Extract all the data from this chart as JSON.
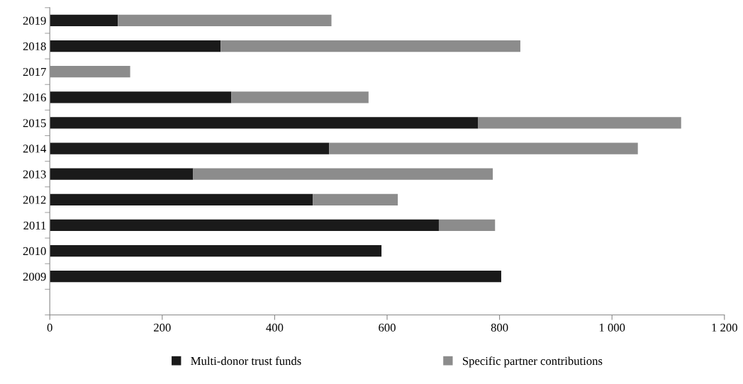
{
  "chart_data": {
    "type": "bar",
    "orientation": "horizontal",
    "stacked": true,
    "categories": [
      "2019",
      "2018",
      "2017",
      "2016",
      "2015",
      "2014",
      "2013",
      "2012",
      "2011",
      "2010",
      "2009",
      null
    ],
    "series": [
      {
        "name": "Multi-donor trust funds",
        "color": "#1a1a1a",
        "values": [
          121,
          304,
          0,
          323,
          762,
          497,
          255,
          468,
          692,
          590,
          803,
          null
        ]
      },
      {
        "name": "Specific partner contributions",
        "color": "#8c8c8c",
        "values": [
          380,
          533,
          143,
          244,
          361,
          549,
          533,
          151,
          100,
          0,
          0,
          null
        ]
      }
    ],
    "xlim": [
      0,
      1200
    ],
    "xticks": [
      0,
      200,
      400,
      600,
      800,
      {
        "value": 1000,
        "label": "1 000"
      },
      {
        "value": 1200,
        "label": "1 200"
      }
    ],
    "legend": "bottom",
    "grid": false
  }
}
